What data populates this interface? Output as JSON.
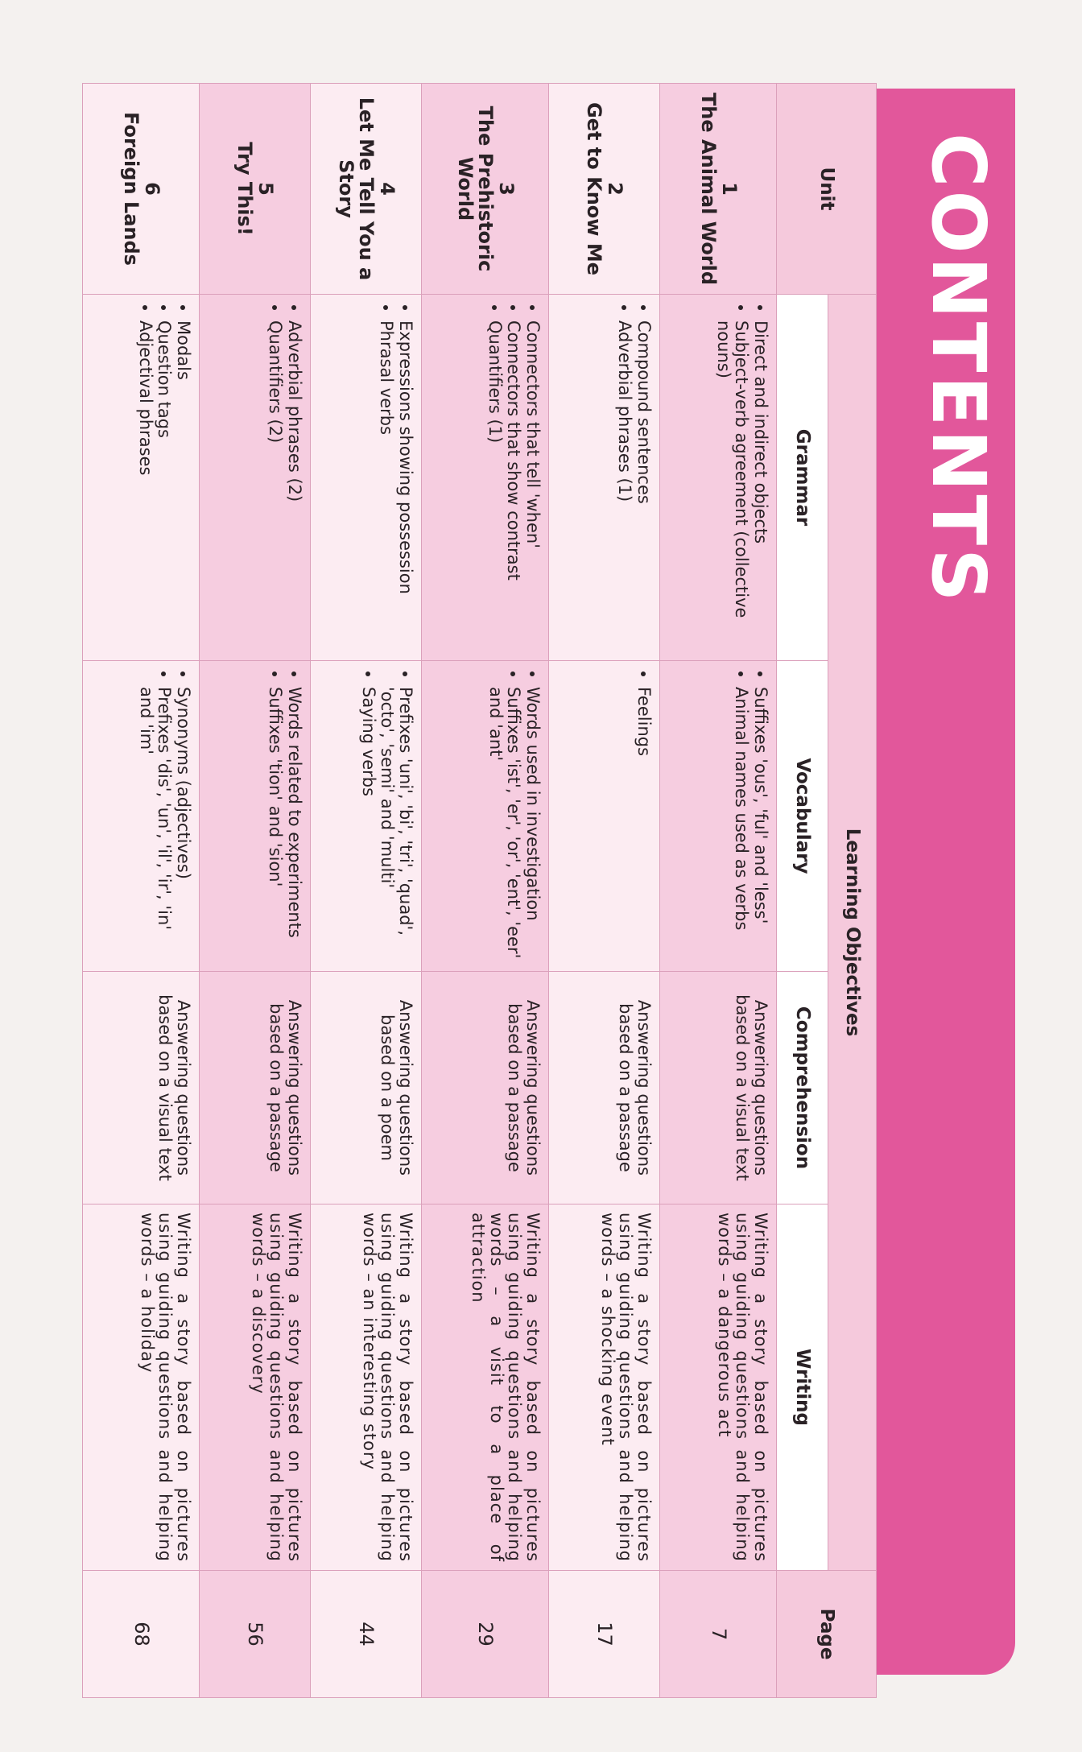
{
  "title": "CONTENTS",
  "header": {
    "unit": "Unit",
    "learning_objectives": "Learning Objectives",
    "grammar": "Grammar",
    "vocabulary": "Vocabulary",
    "comprehension": "Comprehension",
    "writing": "Writing",
    "page": "Page"
  },
  "colors": {
    "band": "#e2579b",
    "row_pink": "#f6cde0",
    "row_light": "#fcecf2"
  },
  "units": [
    {
      "number": "1",
      "name": "The Animal World",
      "grammar": [
        "Direct and indirect objects",
        "Subject-verb agreement (collective nouns)"
      ],
      "vocabulary": [
        "Suffixes 'ous', 'ful' and 'less'",
        "Animal names used as verbs"
      ],
      "comprehension": "Answering questions based on a visual text",
      "writing": "Writing a story based on pictures using guiding questions and helping words – a dangerous act",
      "page": "7"
    },
    {
      "number": "2",
      "name": "Get to Know Me",
      "grammar": [
        "Compound sentences",
        "Adverbial phrases (1)"
      ],
      "vocabulary": [
        "Feelings"
      ],
      "comprehension": "Answering questions based on a passage",
      "writing": "Writing a story based on pictures using guiding questions and helping words – a shocking event",
      "page": "17"
    },
    {
      "number": "3",
      "name": "The Prehistoric World",
      "grammar": [
        "Connectors that tell 'when'",
        "Connectors that show contrast",
        "Quantifiers (1)"
      ],
      "vocabulary": [
        "Words used in investigation",
        "Suffixes 'ist', 'er', 'or', 'ent', 'eer' and 'ant'"
      ],
      "comprehension": "Answering questions based on a passage",
      "writing": "Writing a story based on pictures using guiding questions and helping words – a visit to a place of attraction",
      "page": "29"
    },
    {
      "number": "4",
      "name": "Let Me Tell You a Story",
      "grammar": [
        "Expressions showing possession",
        "Phrasal verbs"
      ],
      "vocabulary": [
        "Prefixes 'uni', 'bi', 'tri', 'quad', 'octo', 'semi' and 'multi'",
        "Saying verbs"
      ],
      "comprehension": "Answering questions based on a poem",
      "writing": "Writing a story based on pictures using guiding questions and helping words – an interesting story",
      "page": "44"
    },
    {
      "number": "5",
      "name": "Try This!",
      "grammar": [
        "Adverbial phrases (2)",
        "Quantifiers (2)"
      ],
      "vocabulary": [
        "Words related to experiments",
        "Suffixes 'tion' and 'sion'"
      ],
      "comprehension": "Answering questions based on a passage",
      "writing": "Writing a story based on pictures using guiding questions and helping words – a discovery",
      "page": "56"
    },
    {
      "number": "6",
      "name": "Foreign Lands",
      "grammar": [
        "Modals",
        "Question tags",
        "Adjectival phrases"
      ],
      "vocabulary": [
        "Synonyms (adjectives)",
        "Prefixes 'dis', 'un', 'il', 'ir', 'in' and 'im'"
      ],
      "comprehension": "Answering questions based on a visual text",
      "writing": "Writing a story based on pictures using guiding questions and helping words – a holiday",
      "page": "68"
    }
  ]
}
